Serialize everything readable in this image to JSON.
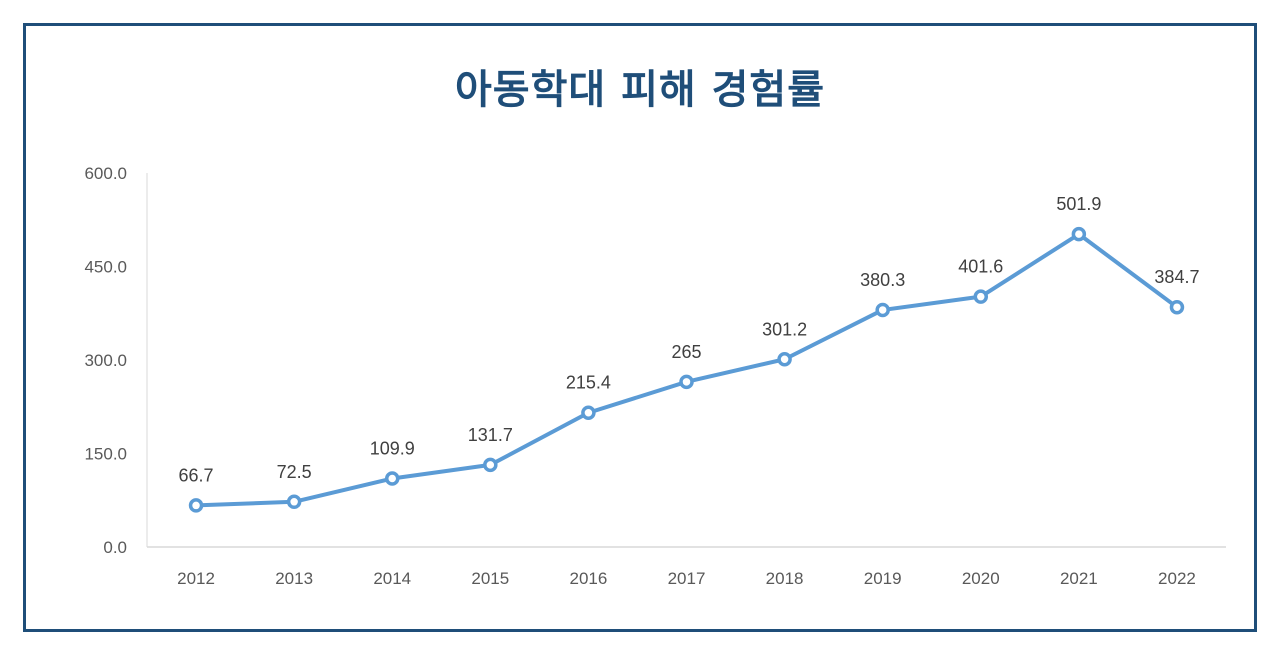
{
  "chart_data": {
    "type": "line",
    "title": "아동학대 피해 경험률",
    "categories": [
      "2012",
      "2013",
      "2014",
      "2015",
      "2016",
      "2017",
      "2018",
      "2019",
      "2020",
      "2021",
      "2022"
    ],
    "series": [
      {
        "values": [
          66.7,
          72.5,
          109.9,
          131.7,
          215.4,
          265,
          301.2,
          380.3,
          401.6,
          501.9,
          384.7
        ],
        "labels": [
          "66.7",
          "72.5",
          "109.9",
          "131.7",
          "215.4",
          "265",
          "301.2",
          "380.3",
          "401.6",
          "501.9",
          "384.7"
        ]
      }
    ],
    "yticks": [
      "0.0",
      "150.0",
      "300.0",
      "450.0",
      "600.0"
    ],
    "ylim": [
      0,
      600
    ],
    "grid": false,
    "legend": "none",
    "colors": {
      "line": "#5b9bd5",
      "title": "#1f4e79",
      "border": "#1f4e79",
      "axis": "#d9d9d9"
    }
  }
}
